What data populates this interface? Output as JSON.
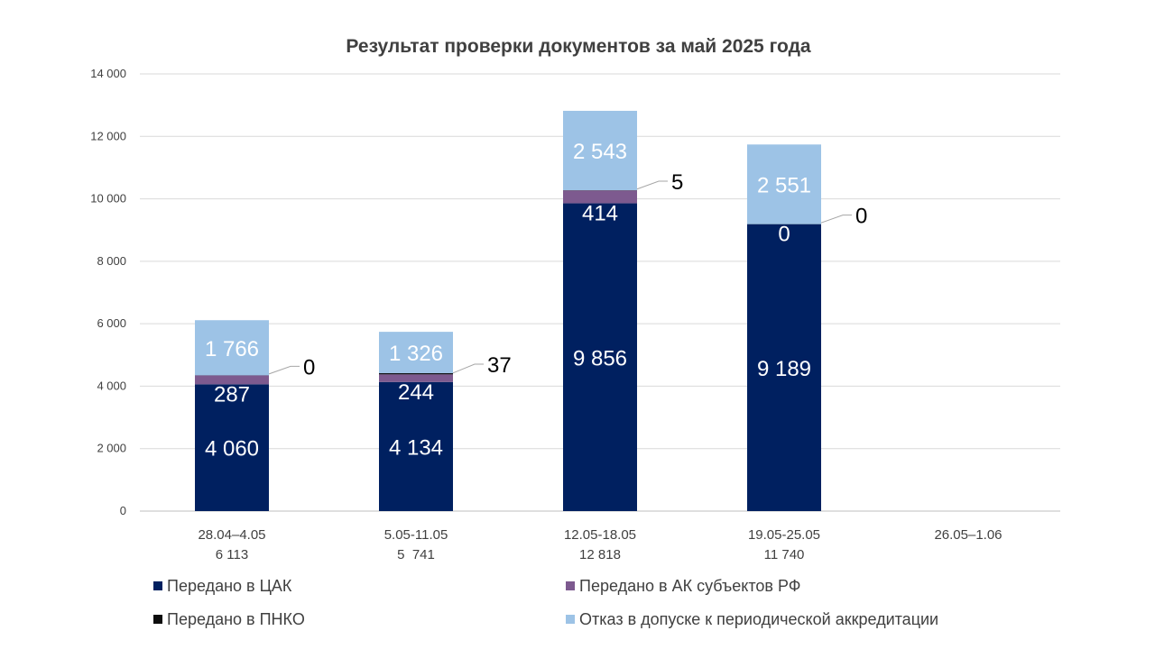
{
  "chart_data": {
    "type": "bar",
    "stacked": true,
    "title": "Результат проверки документов за май 2025 года",
    "categories": [
      "28.04–4.05",
      "5.05-11.05",
      "12.05-18.05",
      "19.05-25.05",
      "26.05–1.06"
    ],
    "totals": [
      "6 113",
      "5  741",
      "12 818",
      "11 740",
      ""
    ],
    "ylim": [
      0,
      14000
    ],
    "yticks": [
      {
        "value": 0,
        "label": "0"
      },
      {
        "value": 2000,
        "label": "2 000"
      },
      {
        "value": 4000,
        "label": "4 000"
      },
      {
        "value": 6000,
        "label": "6 000"
      },
      {
        "value": 8000,
        "label": "8 000"
      },
      {
        "value": 10000,
        "label": "10 000"
      },
      {
        "value": 12000,
        "label": "12 000"
      },
      {
        "value": 14000,
        "label": "14 000"
      }
    ],
    "grid": true,
    "legend_position": "bottom",
    "series": [
      {
        "name": "Передано в ЦАК",
        "color": "#002060",
        "values": [
          4060,
          4134,
          9856,
          9189,
          null
        ],
        "labels": [
          "4 060",
          "4 134",
          "9 856",
          "9 189",
          ""
        ]
      },
      {
        "name": "Передано в АК субъектов РФ",
        "color": "#7d5a8f",
        "values": [
          287,
          244,
          414,
          0,
          null
        ],
        "labels": [
          "287",
          "244",
          "414",
          "0",
          ""
        ]
      },
      {
        "name": "Передано в ПНКО",
        "color": "#0d0d0d",
        "values": [
          0,
          37,
          5,
          0,
          null
        ],
        "labels": [
          "0",
          "37",
          "5",
          "0",
          ""
        ]
      },
      {
        "name": "Отказ в допуске к периодической аккредитации",
        "color": "#9dc3e6",
        "values": [
          1766,
          1326,
          2543,
          2551,
          null
        ],
        "labels": [
          "1 766",
          "1 326",
          "2 543",
          "2 551",
          ""
        ]
      }
    ]
  }
}
